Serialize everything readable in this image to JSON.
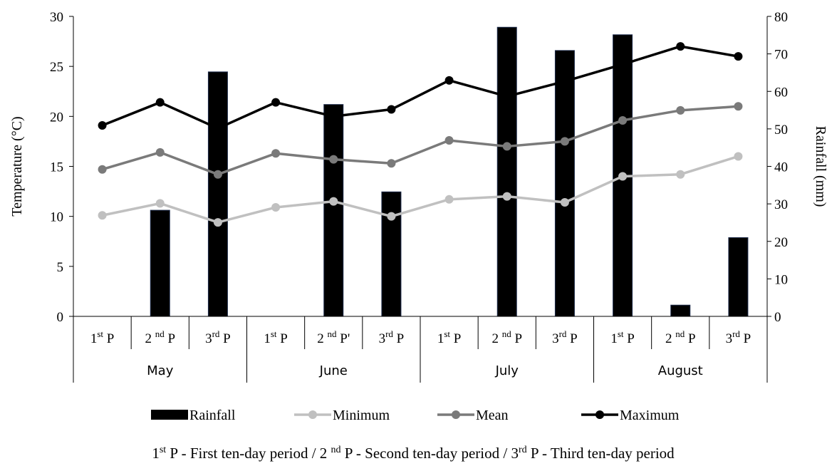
{
  "chart_data": {
    "type": "bar+line",
    "left_axis": {
      "label": "Temperature (°C)",
      "ylim": [
        0,
        30
      ],
      "ticks": [
        "0",
        "5",
        "10",
        "15",
        "20",
        "25",
        "30"
      ]
    },
    "right_axis": {
      "label": "Rainfall (mm)",
      "ylim": [
        0,
        80
      ],
      "ticks": [
        "0",
        "10",
        "20",
        "30",
        "40",
        "50",
        "60",
        "70",
        "80"
      ]
    },
    "categories": [
      {
        "base": "1",
        "sup": "st",
        "suffix": " P"
      },
      {
        "base": "2 ",
        "sup": "nd",
        "suffix": " P"
      },
      {
        "base": "3",
        "sup": "rd",
        "suffix": " P"
      },
      {
        "base": "1",
        "sup": "st",
        "suffix": " P"
      },
      {
        "base": "2 ",
        "sup": "nd",
        "suffix": " P'"
      },
      {
        "base": "3",
        "sup": "rd",
        "suffix": " P"
      },
      {
        "base": "1",
        "sup": "st",
        "suffix": " P"
      },
      {
        "base": "2 ",
        "sup": "nd",
        "suffix": " P"
      },
      {
        "base": "3",
        "sup": "rd",
        "suffix": " P"
      },
      {
        "base": "1",
        "sup": "st",
        "suffix": " P"
      },
      {
        "base": "2 ",
        "sup": "nd",
        "suffix": " P"
      },
      {
        "base": "3",
        "sup": "rd",
        "suffix": " P"
      }
    ],
    "months": [
      "May",
      "June",
      "July",
      "August"
    ],
    "series": [
      {
        "name": "Rainfall",
        "kind": "bar",
        "axis": "right",
        "color": "#000000",
        "values": [
          0,
          28.3,
          65.2,
          0,
          56.5,
          33.2,
          0,
          77.1,
          70.9,
          75.1,
          3.0,
          21.0
        ]
      },
      {
        "name": "Minimum",
        "kind": "line",
        "axis": "left",
        "color": "#c0c0c0",
        "values": [
          10.1,
          11.3,
          9.4,
          10.9,
          11.5,
          10.0,
          11.7,
          12.0,
          11.4,
          14.0,
          14.2,
          16.0
        ]
      },
      {
        "name": "Mean",
        "kind": "line",
        "axis": "left",
        "color": "#7a7a7a",
        "values": [
          14.7,
          16.4,
          14.2,
          16.3,
          15.7,
          15.3,
          17.6,
          17.0,
          17.5,
          19.6,
          20.6,
          21.0
        ]
      },
      {
        "name": "Maximum",
        "kind": "line",
        "axis": "left",
        "color": "#000000",
        "values": [
          19.1,
          21.4,
          18.8,
          21.4,
          20.0,
          20.7,
          23.6,
          22.0,
          23.5,
          25.2,
          27.0,
          26.0
        ]
      }
    ],
    "legend_position": "bottom"
  },
  "footnote": {
    "parts": [
      {
        "text": "1"
      },
      {
        "text": "st",
        "sup": true
      },
      {
        "text": " P - First ten-day period / 2 "
      },
      {
        "text": "nd",
        "sup": true
      },
      {
        "text": " P - Second ten-day period / 3"
      },
      {
        "text": "rd",
        "sup": true
      },
      {
        "text": " P - Third ten-day period"
      }
    ]
  }
}
